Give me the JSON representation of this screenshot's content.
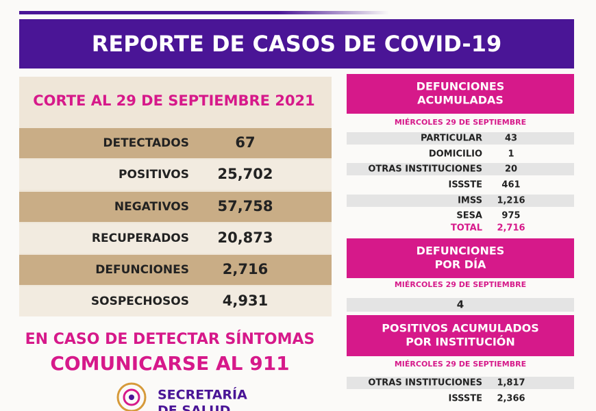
{
  "header": {
    "title": "REPORTE DE CASOS DE COVID-19"
  },
  "summary": {
    "cutoff": "CORTE AL 29 DE SEPTIEMBRE 2021",
    "rows": [
      [
        "DETECTADOS",
        "67"
      ],
      [
        "POSITIVOS",
        "25,702"
      ],
      [
        "NEGATIVOS",
        "57,758"
      ],
      [
        "RECUPERADOS",
        "20,873"
      ],
      [
        "DEFUNCIONES",
        "2,716"
      ],
      [
        "SOSPECHOSOS",
        "4,931"
      ]
    ]
  },
  "call_to_action": {
    "line1": "EN CASO DE DETECTAR SÍNTOMAS",
    "line2": "COMUNICARSE AL 911"
  },
  "logo": {
    "line1": "SECRETARÍA",
    "line2": "DE SALUD"
  },
  "deaths_cumulative": {
    "title": [
      "DEFUNCIONES",
      "ACUMULADAS"
    ],
    "date": "MIÉRCOLES 29 DE SEPTIEMBRE",
    "rows": [
      [
        "PARTICULAR",
        "43"
      ],
      [
        "DOMICILIO",
        "1"
      ],
      [
        "OTRAS INSTITUCIONES",
        "20"
      ],
      [
        "ISSSTE",
        "461"
      ],
      [
        "IMSS",
        "1,216"
      ],
      [
        "SESA",
        "975"
      ]
    ],
    "total": [
      "TOTAL",
      "2,716"
    ]
  },
  "deaths_daily": {
    "title": [
      "DEFUNCIONES",
      "POR DÍA"
    ],
    "date": "MIÉRCOLES 29 DE SEPTIEMBRE",
    "value": "4"
  },
  "positives_by_institution": {
    "title": [
      "POSITIVOS ACUMULADOS",
      "POR INSTITUCIÓN"
    ],
    "date": "MIÉRCOLES 29 DE SEPTIEMBRE",
    "rows": [
      [
        "OTRAS INSTITUCIONES",
        "1,817"
      ],
      [
        "ISSSTE",
        "2,366"
      ]
    ]
  }
}
